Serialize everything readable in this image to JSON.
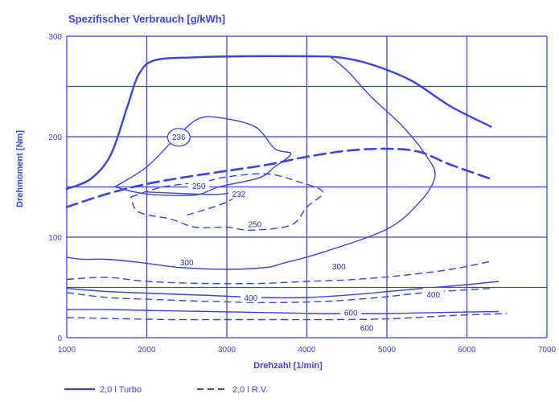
{
  "chart_data": {
    "type": "line",
    "title": "Spezifischer Verbrauch [g/kWh]",
    "xlabel": "Drehzahl [1/min]",
    "ylabel": "Drehmoment [Nm]",
    "xlim": [
      1000,
      7000
    ],
    "ylim": [
      0,
      300
    ],
    "x_ticks": [
      "1000",
      "2000",
      "3000",
      "4000",
      "5000",
      "6000",
      "7000"
    ],
    "y_ticks": [
      "0",
      "100",
      "200",
      "300"
    ],
    "grid": true,
    "series": [
      {
        "name": "2,0 l Turbo",
        "style": "solid",
        "full_load": [
          [
            1000,
            148
          ],
          [
            1300,
            158
          ],
          [
            1550,
            182
          ],
          [
            1750,
            228
          ],
          [
            1900,
            262
          ],
          [
            2100,
            276
          ],
          [
            2600,
            279
          ],
          [
            3200,
            280
          ],
          [
            4000,
            280
          ],
          [
            4400,
            279
          ],
          [
            4800,
            272
          ],
          [
            5300,
            256
          ],
          [
            5800,
            230
          ],
          [
            6300,
            210
          ]
        ],
        "contours": [
          {
            "label": "236",
            "points": [
              [
                1600,
                150
              ],
              [
                2000,
                170
              ],
              [
                2400,
                202
              ],
              [
                2650,
                218
              ],
              [
                2900,
                219
              ],
              [
                3350,
                210
              ],
              [
                3600,
                188
              ],
              [
                3800,
                183
              ],
              [
                3600,
                170
              ],
              [
                3400,
                159
              ],
              [
                2900,
                150
              ],
              [
                2600,
                142
              ],
              [
                2000,
                143
              ],
              [
                1600,
                150
              ]
            ]
          },
          {
            "label": "250",
            "points": [
              [
                2000,
                145
              ],
              [
                2600,
                143
              ],
              [
                2950,
                143
              ],
              [
                3200,
                148
              ]
            ]
          },
          {
            "label": "300",
            "points": [
              [
                1000,
                80
              ],
              [
                1200,
                78
              ],
              [
                1500,
                78
              ],
              [
                1900,
                75
              ],
              [
                2400,
                70
              ],
              [
                3000,
                68
              ],
              [
                3500,
                70
              ],
              [
                3700,
                74
              ],
              [
                4200,
                85
              ],
              [
                5000,
                108
              ],
              [
                5400,
                134
              ],
              [
                5600,
                160
              ],
              [
                5500,
                180
              ],
              [
                5200,
                210
              ],
              [
                4800,
                240
              ],
              [
                4500,
                266
              ],
              [
                4300,
                279
              ]
            ]
          },
          {
            "label": "400",
            "points": [
              [
                1000,
                49
              ],
              [
                1500,
                46
              ],
              [
                2100,
                44
              ],
              [
                2800,
                42
              ],
              [
                3400,
                40
              ],
              [
                4000,
                40
              ],
              [
                4600,
                43
              ],
              [
                5300,
                48
              ],
              [
                5900,
                52
              ],
              [
                6400,
                56
              ]
            ]
          },
          {
            "label": "600",
            "points": [
              [
                1000,
                28
              ],
              [
                1500,
                28
              ],
              [
                2100,
                27
              ],
              [
                2800,
                26
              ],
              [
                3500,
                25
              ],
              [
                4200,
                24
              ],
              [
                4900,
                24
              ],
              [
                5600,
                25
              ],
              [
                6400,
                26
              ]
            ]
          }
        ]
      },
      {
        "name": "2,0 l R.V.",
        "style": "dashed",
        "full_load": [
          [
            1000,
            130
          ],
          [
            1500,
            143
          ],
          [
            2000,
            153
          ],
          [
            2500,
            160
          ],
          [
            3000,
            166
          ],
          [
            3500,
            172
          ],
          [
            4000,
            180
          ],
          [
            4500,
            186
          ],
          [
            5000,
            188
          ],
          [
            5400,
            185
          ],
          [
            5800,
            172
          ],
          [
            6300,
            158
          ]
        ],
        "contours": [
          {
            "label": "232",
            "points": [
              [
                1800,
                140
              ],
              [
                2200,
                150
              ],
              [
                2700,
                155
              ],
              [
                3000,
                160
              ],
              [
                3500,
                163
              ],
              [
                3900,
                155
              ],
              [
                4200,
                145
              ],
              [
                4000,
                130
              ],
              [
                3800,
                112
              ],
              [
                3300,
                107
              ],
              [
                3000,
                110
              ],
              [
                2600,
                110
              ],
              [
                2300,
                118
              ],
              [
                1900,
                125
              ],
              [
                1800,
                140
              ]
            ]
          },
          {
            "label": "250",
            "points": [
              [
                2500,
                122
              ],
              [
                3000,
                135
              ],
              [
                3200,
                148
              ]
            ]
          },
          {
            "label": "300",
            "points": [
              [
                1000,
                58
              ],
              [
                1500,
                60
              ],
              [
                2000,
                56
              ],
              [
                2700,
                54
              ],
              [
                3400,
                54
              ],
              [
                4000,
                56
              ],
              [
                4600,
                58
              ],
              [
                5200,
                62
              ],
              [
                5800,
                68
              ],
              [
                6300,
                76
              ]
            ]
          },
          {
            "label": "400",
            "points": [
              [
                1000,
                45
              ],
              [
                1500,
                40
              ],
              [
                2100,
                38
              ],
              [
                2800,
                36
              ],
              [
                3500,
                35
              ],
              [
                4200,
                36
              ],
              [
                4900,
                40
              ],
              [
                5500,
                45
              ],
              [
                6300,
                49
              ]
            ]
          },
          {
            "label": "600",
            "points": [
              [
                1000,
                20
              ],
              [
                1600,
                19
              ],
              [
                2300,
                18
              ],
              [
                3000,
                18
              ],
              [
                3700,
                18
              ],
              [
                4400,
                18
              ],
              [
                5100,
                19
              ],
              [
                5800,
                22
              ],
              [
                6500,
                24
              ]
            ]
          }
        ]
      }
    ],
    "legend_placement": "bottom"
  }
}
